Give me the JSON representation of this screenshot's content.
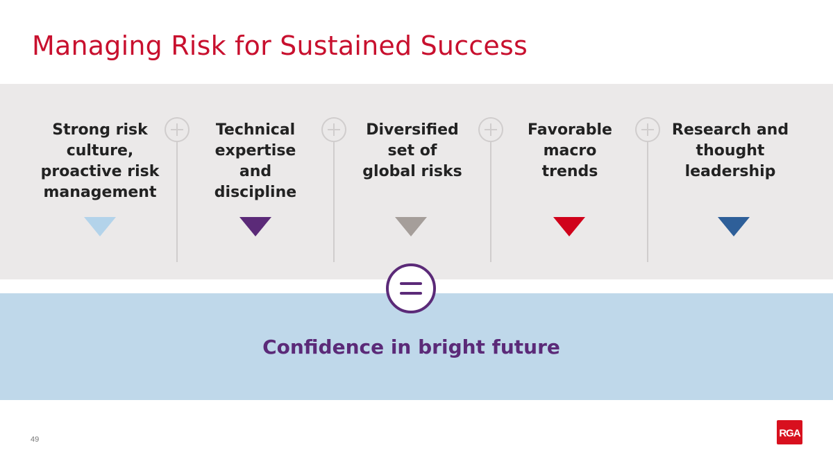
{
  "slide": {
    "title": "Managing Risk for Sustained Success",
    "page_number": "49",
    "logo_text": "RGA"
  },
  "pillars": [
    {
      "label": "Strong risk\nculture,\nproactive risk\nmanagement",
      "arrow_color": "#b3d3ea"
    },
    {
      "label": "Technical\nexpertise\nand\ndiscipline",
      "arrow_color": "#5b2a78"
    },
    {
      "label": "Diversified\nset of\nglobal risks",
      "arrow_color": "#a59e9a"
    },
    {
      "label": "Favorable\nmacro\ntrends",
      "arrow_color": "#d0021b"
    },
    {
      "label": "Research and\nthought\nleadership",
      "arrow_color": "#2e5f99"
    }
  ],
  "result": {
    "label": "Confidence in bright future"
  },
  "colors": {
    "title": "#c8102e",
    "grey_band": "#ebe9e9",
    "blue_band": "#bfd8ea",
    "result_text": "#5b2a78",
    "separator": "#d0cdcd"
  },
  "icons": {
    "separator": "plus-circle-icon",
    "result": "equals-circle-icon"
  }
}
